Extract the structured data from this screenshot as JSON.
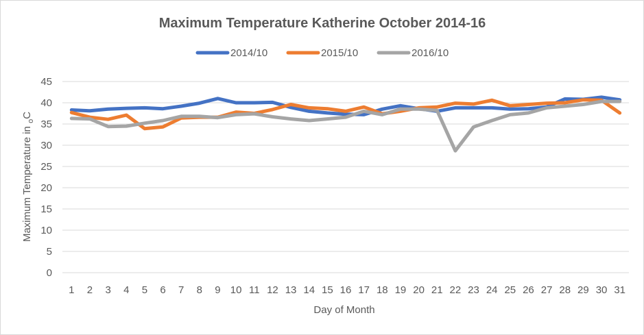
{
  "chart_data": {
    "type": "line",
    "title": "Maximum Temperature Katherine October 2014-16",
    "xlabel": "Day of Month",
    "ylabel_main": "Maximum Temperature in ",
    "ylabel_sub": "o",
    "ylabel_tail": "C",
    "ylim": [
      0,
      45
    ],
    "yticks": [
      "0",
      "5",
      "10",
      "15",
      "20",
      "25",
      "30",
      "35",
      "40",
      "45"
    ],
    "grid": true,
    "legend_position": "top",
    "x": [
      "1",
      "2",
      "3",
      "4",
      "5",
      "6",
      "7",
      "8",
      "9",
      "10",
      "11",
      "12",
      "13",
      "14",
      "15",
      "16",
      "17",
      "18",
      "19",
      "20",
      "21",
      "22",
      "23",
      "24",
      "25",
      "26",
      "27",
      "28",
      "29",
      "30",
      "31"
    ],
    "series": [
      {
        "name": "2014/10",
        "color": "#4472c4",
        "values": [
          38.3,
          38.1,
          38.5,
          38.7,
          38.8,
          38.6,
          39.2,
          39.9,
          41.0,
          40.0,
          40.0,
          40.1,
          38.9,
          38.0,
          37.6,
          37.3,
          37.2,
          38.5,
          39.3,
          38.6,
          38.0,
          38.8,
          38.8,
          38.8,
          38.5,
          38.6,
          39.0,
          40.9,
          40.8,
          41.3,
          40.7
        ]
      },
      {
        "name": "2015/10",
        "color": "#ed7d31",
        "values": [
          37.7,
          36.6,
          36.1,
          37.1,
          33.9,
          34.3,
          36.4,
          36.6,
          36.6,
          37.8,
          37.5,
          38.4,
          39.6,
          38.8,
          38.6,
          38.0,
          39.0,
          37.4,
          38.0,
          38.8,
          39.0,
          39.9,
          39.7,
          40.6,
          39.3,
          39.6,
          39.9,
          40.0,
          40.7,
          40.6,
          37.6
        ]
      },
      {
        "name": "2016/10",
        "color": "#a5a5a5",
        "values": [
          36.3,
          36.2,
          34.4,
          34.5,
          35.2,
          35.8,
          36.8,
          36.8,
          36.5,
          37.2,
          37.4,
          36.7,
          36.2,
          35.8,
          36.2,
          36.6,
          38.0,
          37.2,
          38.5,
          38.5,
          38.2,
          28.7,
          34.3,
          35.8,
          37.2,
          37.6,
          38.8,
          39.2,
          39.6,
          40.3,
          40.3
        ]
      }
    ]
  }
}
